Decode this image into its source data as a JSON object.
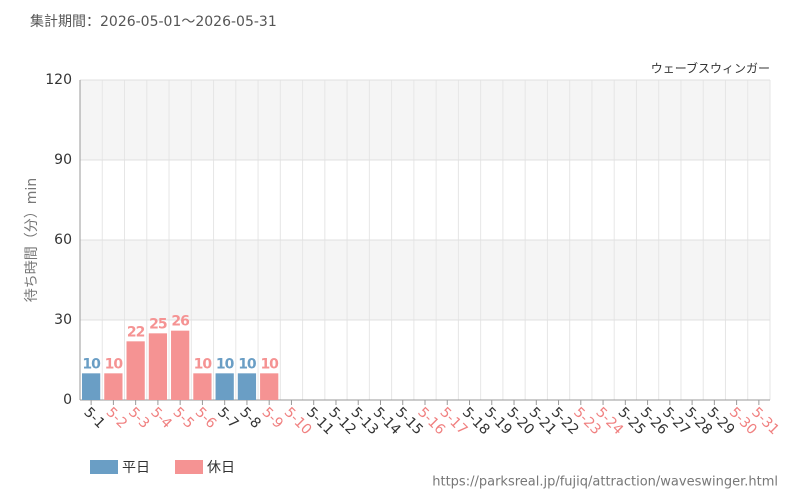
{
  "chart_data": {
    "type": "bar",
    "title": "集計期間：2026-05-01～2026-05-31",
    "subtitle": "ウェーブスウィンガー",
    "y_label": "待ち時間（分）min",
    "source": "https://parksreal.jp/fujiq/attraction/waveswinger.html",
    "categories": [
      "5-1",
      "5-2",
      "5-3",
      "5-4",
      "5-5",
      "5-6",
      "5-7",
      "5-8",
      "5-9",
      "5-10",
      "5-11",
      "5-12",
      "5-13",
      "5-14",
      "5-15",
      "5-16",
      "5-17",
      "5-18",
      "5-19",
      "5-20",
      "5-21",
      "5-22",
      "5-23",
      "5-24",
      "5-25",
      "5-26",
      "5-27",
      "5-28",
      "5-29",
      "5-30",
      "5-31"
    ],
    "category_colors": [
      "#333333",
      "#f08080",
      "#f08080",
      "#f08080",
      "#f08080",
      "#f08080",
      "#333333",
      "#333333",
      "#f08080",
      "#f08080",
      "#333333",
      "#333333",
      "#333333",
      "#333333",
      "#333333",
      "#f08080",
      "#f08080",
      "#333333",
      "#333333",
      "#333333",
      "#333333",
      "#333333",
      "#f08080",
      "#f08080",
      "#333333",
      "#333333",
      "#333333",
      "#333333",
      "#333333",
      "#f08080",
      "#f08080"
    ],
    "series": [
      {
        "name": "平日",
        "color": "#6a9ec5",
        "values": [
          10,
          null,
          null,
          null,
          null,
          null,
          10,
          10,
          null,
          null,
          null,
          null,
          null,
          null,
          null,
          null,
          null,
          null,
          null,
          null,
          null,
          null,
          null,
          null,
          null,
          null,
          null,
          null,
          null,
          null,
          null
        ]
      },
      {
        "name": "休日",
        "color": "#f59393",
        "values": [
          null,
          10,
          22,
          25,
          26,
          10,
          null,
          null,
          10,
          null,
          null,
          null,
          null,
          null,
          null,
          null,
          null,
          null,
          null,
          null,
          null,
          null,
          null,
          null,
          null,
          null,
          null,
          null,
          null,
          null,
          null
        ]
      }
    ],
    "ylim": [
      0,
      120
    ],
    "yticks": [
      0,
      30,
      60,
      90,
      120
    ],
    "grid": true
  }
}
